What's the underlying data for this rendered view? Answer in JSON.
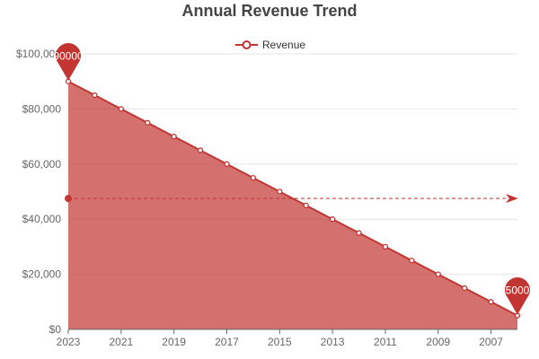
{
  "chart_data": {
    "type": "area",
    "title": "Annual Revenue Trend",
    "x": [
      2023,
      2022,
      2021,
      2020,
      2019,
      2018,
      2017,
      2016,
      2015,
      2014,
      2013,
      2012,
      2011,
      2010,
      2009,
      2008,
      2007,
      2006
    ],
    "x_tick_labels": [
      "2023",
      "2021",
      "2019",
      "2017",
      "2015",
      "2013",
      "2011",
      "2009",
      "2007"
    ],
    "series": [
      {
        "name": "Revenue",
        "values": [
          90000,
          85000,
          80000,
          75000,
          70000,
          65000,
          60000,
          55000,
          50000,
          45000,
          40000,
          35000,
          30000,
          25000,
          20000,
          15000,
          10000,
          5000
        ]
      }
    ],
    "ylim": [
      0,
      100000
    ],
    "y_ticks": [
      0,
      20000,
      40000,
      60000,
      80000,
      100000
    ],
    "y_tick_labels": [
      "$0",
      "$20,000",
      "$40,000",
      "$60,000",
      "$80,000",
      "$100,000"
    ],
    "grid": true,
    "legend": "top-center",
    "mark_points": [
      {
        "type": "max",
        "value": 90000,
        "label": "90000"
      },
      {
        "type": "min",
        "value": 5000,
        "label": "5000"
      }
    ],
    "mark_line": {
      "type": "average",
      "value": 47500,
      "label": "47500"
    },
    "colors": {
      "line": "#c23531",
      "area": "#c23531",
      "area_opacity": 0.7,
      "grid": "#e6e6e6",
      "axis": "#666666"
    }
  }
}
